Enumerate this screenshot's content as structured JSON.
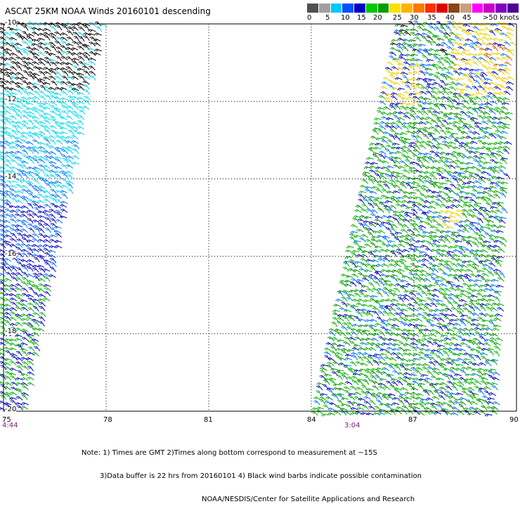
{
  "title": "ASCAT 25KM NOAA Winds 20160101 descending",
  "legend": {
    "labels": [
      "0",
      "5",
      "10",
      "15",
      "20",
      "25",
      "30",
      "35",
      "40",
      "45",
      ">50 knots"
    ],
    "colors": [
      "#505050",
      "#a0a0a0",
      "#00c8ff",
      "#0050ff",
      "#0000c8",
      "#00c800",
      "#00a000",
      "#ffe000",
      "#ffb400",
      "#ff7800",
      "#ff3000",
      "#e00000",
      "#8b4513",
      "#c8a080",
      "#ff00ff",
      "#c800c8",
      "#8000c0",
      "#500090"
    ]
  },
  "axes": {
    "lat_labels": [
      "-10",
      "-12",
      "-14",
      "-16",
      "-18",
      "-20"
    ],
    "lon_labels": [
      "75",
      "78",
      "81",
      "84",
      "87",
      "90"
    ]
  },
  "times": [
    "4:44",
    "3:04"
  ],
  "notes": {
    "line1": "Note: 1) Times are GMT 2)Times along bottom correspond to measurement at ~15S",
    "line2": "3)Data buffer is 22 hrs from 20160101 4) Black wind barbs indicate possible contamination",
    "line3": "NOAA/NESDIS/Center for Satellite Applications and Research"
  },
  "swath_colors": {
    "contaminated": "#000000",
    "light": "#00d8e8",
    "moderate": "#0070ff",
    "fresh": "#0000c0",
    "strong": "#00b000",
    "gale": "#008800",
    "yellow": "#f0d000",
    "orange": "#d86000"
  }
}
